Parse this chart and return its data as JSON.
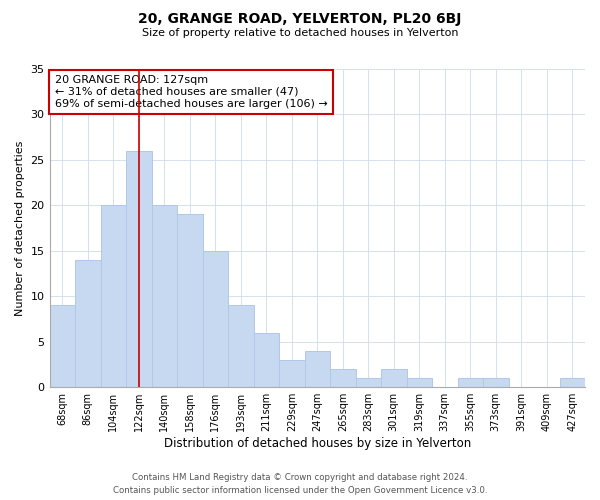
{
  "title": "20, GRANGE ROAD, YELVERTON, PL20 6BJ",
  "subtitle": "Size of property relative to detached houses in Yelverton",
  "xlabel": "Distribution of detached houses by size in Yelverton",
  "ylabel": "Number of detached properties",
  "bar_labels": [
    "68sqm",
    "86sqm",
    "104sqm",
    "122sqm",
    "140sqm",
    "158sqm",
    "176sqm",
    "193sqm",
    "211sqm",
    "229sqm",
    "247sqm",
    "265sqm",
    "283sqm",
    "301sqm",
    "319sqm",
    "337sqm",
    "355sqm",
    "373sqm",
    "391sqm",
    "409sqm",
    "427sqm"
  ],
  "bar_values": [
    9,
    14,
    20,
    26,
    20,
    19,
    15,
    9,
    6,
    3,
    4,
    2,
    1,
    2,
    1,
    0,
    1,
    1,
    0,
    0,
    1
  ],
  "bar_color": "#c6d9f0",
  "bar_edge_color": "#b0c8e8",
  "vline_x": 3,
  "vline_color": "#cc0000",
  "annotation_text": "20 GRANGE ROAD: 127sqm\n← 31% of detached houses are smaller (47)\n69% of semi-detached houses are larger (106) →",
  "annotation_box_color": "#ffffff",
  "annotation_box_edge": "#cc0000",
  "ylim": [
    0,
    35
  ],
  "yticks": [
    0,
    5,
    10,
    15,
    20,
    25,
    30,
    35
  ],
  "background_color": "#ffffff",
  "footer_line1": "Contains HM Land Registry data © Crown copyright and database right 2024.",
  "footer_line2": "Contains public sector information licensed under the Open Government Licence v3.0."
}
